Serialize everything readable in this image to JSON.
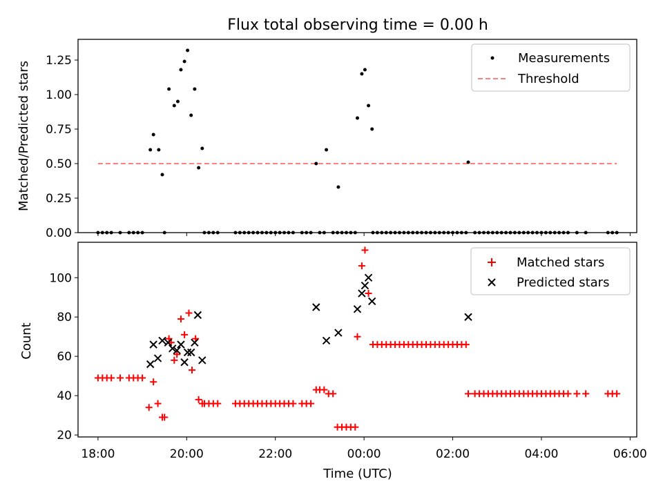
{
  "chart_data": [
    {
      "type": "scatter",
      "title": "Flux total observing time = 0.00 h",
      "xlabel": "",
      "ylabel": "Matched/Predicted stars",
      "xlim": [
        17.55,
        30.15
      ],
      "ylim": [
        0,
        1.4
      ],
      "yticks": [
        0,
        0.25,
        0.5,
        0.75,
        1.0,
        1.25
      ],
      "ytick_labels": [
        "0.00",
        "0.25",
        "0.50",
        "0.75",
        "1.00",
        "1.25"
      ],
      "xticks": [
        18,
        20,
        22,
        24,
        26,
        28,
        30
      ],
      "grid": false,
      "legend_position": "top-right",
      "legend": [
        "Measurements",
        "Threshold"
      ],
      "series": [
        {
          "name": "Measurements",
          "marker": "dot",
          "color": "#000000",
          "points": [
            [
              18.0,
              0
            ],
            [
              18.1,
              0
            ],
            [
              18.2,
              0
            ],
            [
              18.3,
              0
            ],
            [
              18.5,
              0
            ],
            [
              18.7,
              0
            ],
            [
              18.8,
              0
            ],
            [
              18.9,
              0
            ],
            [
              19.0,
              0
            ],
            [
              19.5,
              0
            ],
            [
              20.4,
              0
            ],
            [
              20.5,
              0
            ],
            [
              20.6,
              0
            ],
            [
              20.7,
              0
            ],
            [
              21.1,
              0
            ],
            [
              21.2,
              0
            ],
            [
              21.3,
              0
            ],
            [
              21.4,
              0
            ],
            [
              21.5,
              0
            ],
            [
              21.6,
              0
            ],
            [
              21.7,
              0
            ],
            [
              21.8,
              0
            ],
            [
              21.9,
              0
            ],
            [
              22.0,
              0
            ],
            [
              22.1,
              0
            ],
            [
              22.2,
              0
            ],
            [
              22.3,
              0
            ],
            [
              22.4,
              0
            ],
            [
              22.6,
              0
            ],
            [
              22.7,
              0
            ],
            [
              22.8,
              0
            ],
            [
              23.0,
              0
            ],
            [
              23.1,
              0
            ],
            [
              23.3,
              0
            ],
            [
              23.4,
              0
            ],
            [
              23.5,
              0
            ],
            [
              23.6,
              0
            ],
            [
              23.7,
              0
            ],
            [
              23.8,
              0
            ],
            [
              24.2,
              0
            ],
            [
              24.3,
              0
            ],
            [
              24.4,
              0
            ],
            [
              24.5,
              0
            ],
            [
              24.6,
              0
            ],
            [
              24.7,
              0
            ],
            [
              24.8,
              0
            ],
            [
              24.9,
              0
            ],
            [
              25.0,
              0
            ],
            [
              25.1,
              0
            ],
            [
              25.2,
              0
            ],
            [
              25.3,
              0
            ],
            [
              25.4,
              0
            ],
            [
              25.5,
              0
            ],
            [
              25.6,
              0
            ],
            [
              25.7,
              0
            ],
            [
              25.8,
              0
            ],
            [
              25.9,
              0
            ],
            [
              26.0,
              0
            ],
            [
              26.1,
              0
            ],
            [
              26.2,
              0
            ],
            [
              26.3,
              0
            ],
            [
              26.5,
              0
            ],
            [
              26.6,
              0
            ],
            [
              26.7,
              0
            ],
            [
              26.8,
              0
            ],
            [
              26.9,
              0
            ],
            [
              27.0,
              0
            ],
            [
              27.1,
              0
            ],
            [
              27.2,
              0
            ],
            [
              27.3,
              0
            ],
            [
              27.4,
              0
            ],
            [
              27.5,
              0
            ],
            [
              27.6,
              0
            ],
            [
              27.7,
              0
            ],
            [
              27.8,
              0
            ],
            [
              27.9,
              0
            ],
            [
              28.0,
              0
            ],
            [
              28.1,
              0
            ],
            [
              28.2,
              0
            ],
            [
              28.3,
              0
            ],
            [
              28.4,
              0
            ],
            [
              28.5,
              0
            ],
            [
              28.6,
              0
            ],
            [
              28.8,
              0
            ],
            [
              29.0,
              0
            ],
            [
              29.5,
              0
            ],
            [
              29.6,
              0
            ],
            [
              29.7,
              0
            ],
            [
              19.18,
              0.6
            ],
            [
              19.25,
              0.71
            ],
            [
              19.37,
              0.6
            ],
            [
              19.45,
              0.42
            ],
            [
              19.6,
              1.04
            ],
            [
              19.72,
              0.92
            ],
            [
              19.8,
              0.95
            ],
            [
              19.87,
              1.18
            ],
            [
              19.95,
              1.24
            ],
            [
              20.02,
              1.32
            ],
            [
              20.1,
              0.85
            ],
            [
              20.18,
              1.04
            ],
            [
              20.27,
              0.47
            ],
            [
              20.35,
              0.61
            ],
            [
              22.92,
              0.5
            ],
            [
              23.15,
              0.6
            ],
            [
              23.42,
              0.33
            ],
            [
              23.85,
              0.83
            ],
            [
              23.95,
              1.15
            ],
            [
              24.02,
              1.18
            ],
            [
              24.1,
              0.92
            ],
            [
              24.18,
              0.75
            ],
            [
              26.35,
              0.51
            ]
          ]
        },
        {
          "name": "Threshold",
          "type": "line",
          "style": "dashed",
          "color": "#ff7f7f",
          "x": [
            18.0,
            29.7
          ],
          "y": [
            0.5,
            0.5
          ]
        }
      ]
    },
    {
      "type": "scatter",
      "title": "",
      "xlabel": "Time (UTC)",
      "ylabel": "Count",
      "xlim": [
        17.55,
        30.15
      ],
      "ylim": [
        19,
        118
      ],
      "yticks": [
        20,
        40,
        60,
        80,
        100
      ],
      "ytick_labels": [
        "20",
        "40",
        "60",
        "80",
        "100"
      ],
      "xticks": [
        18,
        20,
        22,
        24,
        26,
        28,
        30
      ],
      "xtick_labels": [
        "18:00",
        "20:00",
        "22:00",
        "00:00",
        "02:00",
        "04:00",
        "06:00"
      ],
      "grid": false,
      "legend_position": "top-right",
      "legend": [
        "Matched stars",
        "Predicted stars"
      ],
      "series": [
        {
          "name": "Matched stars",
          "marker": "plus",
          "color": "#ff0000",
          "points": [
            [
              18.0,
              49
            ],
            [
              18.1,
              49
            ],
            [
              18.2,
              49
            ],
            [
              18.3,
              49
            ],
            [
              18.5,
              49
            ],
            [
              18.7,
              49
            ],
            [
              18.8,
              49
            ],
            [
              18.9,
              49
            ],
            [
              19.0,
              49
            ],
            [
              19.5,
              29
            ],
            [
              19.45,
              29
            ],
            [
              19.15,
              34
            ],
            [
              19.35,
              36
            ],
            [
              19.25,
              47
            ],
            [
              19.6,
              69
            ],
            [
              19.65,
              67
            ],
            [
              19.72,
              58
            ],
            [
              19.78,
              61
            ],
            [
              19.87,
              79
            ],
            [
              19.95,
              71
            ],
            [
              20.05,
              82
            ],
            [
              20.12,
              53
            ],
            [
              20.2,
              69
            ],
            [
              20.27,
              38
            ],
            [
              20.35,
              36
            ],
            [
              20.4,
              36
            ],
            [
              20.5,
              36
            ],
            [
              20.6,
              36
            ],
            [
              20.7,
              36
            ],
            [
              21.1,
              36
            ],
            [
              21.2,
              36
            ],
            [
              21.3,
              36
            ],
            [
              21.4,
              36
            ],
            [
              21.5,
              36
            ],
            [
              21.6,
              36
            ],
            [
              21.7,
              36
            ],
            [
              21.8,
              36
            ],
            [
              21.9,
              36
            ],
            [
              22.0,
              36
            ],
            [
              22.1,
              36
            ],
            [
              22.2,
              36
            ],
            [
              22.3,
              36
            ],
            [
              22.4,
              36
            ],
            [
              22.6,
              36
            ],
            [
              22.7,
              36
            ],
            [
              22.8,
              36
            ],
            [
              22.92,
              43
            ],
            [
              23.0,
              43
            ],
            [
              23.1,
              43
            ],
            [
              23.2,
              41
            ],
            [
              23.3,
              41
            ],
            [
              23.4,
              24
            ],
            [
              23.5,
              24
            ],
            [
              23.6,
              24
            ],
            [
              23.7,
              24
            ],
            [
              23.8,
              24
            ],
            [
              23.85,
              70
            ],
            [
              23.95,
              106
            ],
            [
              24.02,
              114
            ],
            [
              24.1,
              92
            ],
            [
              24.2,
              66
            ],
            [
              24.3,
              66
            ],
            [
              24.4,
              66
            ],
            [
              24.5,
              66
            ],
            [
              24.6,
              66
            ],
            [
              24.7,
              66
            ],
            [
              24.8,
              66
            ],
            [
              24.9,
              66
            ],
            [
              25.0,
              66
            ],
            [
              25.1,
              66
            ],
            [
              25.2,
              66
            ],
            [
              25.3,
              66
            ],
            [
              25.4,
              66
            ],
            [
              25.5,
              66
            ],
            [
              25.6,
              66
            ],
            [
              25.7,
              66
            ],
            [
              25.8,
              66
            ],
            [
              25.9,
              66
            ],
            [
              26.0,
              66
            ],
            [
              26.1,
              66
            ],
            [
              26.2,
              66
            ],
            [
              26.3,
              66
            ],
            [
              26.35,
              41
            ],
            [
              26.5,
              41
            ],
            [
              26.6,
              41
            ],
            [
              26.7,
              41
            ],
            [
              26.8,
              41
            ],
            [
              26.9,
              41
            ],
            [
              27.0,
              41
            ],
            [
              27.1,
              41
            ],
            [
              27.2,
              41
            ],
            [
              27.3,
              41
            ],
            [
              27.4,
              41
            ],
            [
              27.5,
              41
            ],
            [
              27.6,
              41
            ],
            [
              27.7,
              41
            ],
            [
              27.8,
              41
            ],
            [
              27.9,
              41
            ],
            [
              28.0,
              41
            ],
            [
              28.1,
              41
            ],
            [
              28.2,
              41
            ],
            [
              28.3,
              41
            ],
            [
              28.4,
              41
            ],
            [
              28.5,
              41
            ],
            [
              28.6,
              41
            ],
            [
              28.8,
              41
            ],
            [
              29.0,
              41
            ],
            [
              29.5,
              41
            ],
            [
              29.6,
              41
            ],
            [
              29.7,
              41
            ]
          ]
        },
        {
          "name": "Predicted stars",
          "marker": "x",
          "color": "#000000",
          "points": [
            [
              19.18,
              56
            ],
            [
              19.25,
              66
            ],
            [
              19.35,
              59
            ],
            [
              19.45,
              68
            ],
            [
              19.58,
              67
            ],
            [
              19.68,
              64
            ],
            [
              19.78,
              63
            ],
            [
              19.87,
              66
            ],
            [
              19.95,
              57
            ],
            [
              20.02,
              62
            ],
            [
              20.1,
              62
            ],
            [
              20.18,
              67
            ],
            [
              20.25,
              81
            ],
            [
              20.35,
              58
            ],
            [
              22.92,
              85
            ],
            [
              23.15,
              68
            ],
            [
              23.42,
              72
            ],
            [
              23.85,
              84
            ],
            [
              23.95,
              92
            ],
            [
              24.02,
              96
            ],
            [
              24.1,
              100
            ],
            [
              24.18,
              88
            ],
            [
              26.35,
              80
            ]
          ]
        }
      ]
    }
  ]
}
